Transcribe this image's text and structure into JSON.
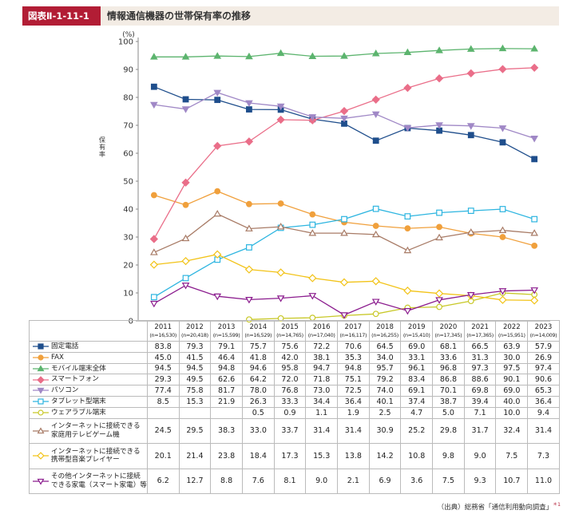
{
  "figure": {
    "tag": "図表Ⅱ-1-11-1",
    "title": "情報通信機器の世帯保有率の推移",
    "source": "（出典）総務省「通信利用動向調査」",
    "source_ref": "＊1"
  },
  "chart_data": {
    "type": "line",
    "title": "情報通信機器の世帯保有率の推移",
    "ylabel": "保有率",
    "yunit": "(%)",
    "ylim": [
      0,
      100
    ],
    "yticks": [
      0,
      10,
      20,
      30,
      40,
      50,
      60,
      70,
      80,
      90,
      100
    ],
    "grid": false,
    "legend": "table-left",
    "x": [
      "2011",
      "2012",
      "2013",
      "2014",
      "2015",
      "2016",
      "2017",
      "2018",
      "2019",
      "2020",
      "2021",
      "2022",
      "2023"
    ],
    "sample_sizes": [
      "(n=16,530)",
      "(n=20,418)",
      "(n=15,599)",
      "(n=16,529)",
      "(n=14,765)",
      "(n=17,040)",
      "(n=16,117)",
      "(n=16,255)",
      "(n=15,410)",
      "(n=17,345)",
      "(n=17,365)",
      "(n=15,951)",
      "(n=14,009)"
    ],
    "series": [
      {
        "name": "固定電話",
        "lines": [
          "固定電話"
        ],
        "color": "#1f4e8c",
        "marker": "square",
        "values": [
          83.8,
          79.3,
          79.1,
          75.7,
          75.6,
          72.2,
          70.6,
          64.5,
          69.0,
          68.1,
          66.5,
          63.9,
          57.9
        ]
      },
      {
        "name": "FAX",
        "lines": [
          "FAX"
        ],
        "color": "#f0a03c",
        "marker": "circle",
        "values": [
          45.0,
          41.5,
          46.4,
          41.8,
          42.0,
          38.1,
          35.3,
          34.0,
          33.1,
          33.6,
          31.3,
          30.0,
          26.9
        ]
      },
      {
        "name": "モバイル端末全体",
        "lines": [
          "モバイル端末全体"
        ],
        "color": "#5cb46e",
        "marker": "triangle",
        "values": [
          94.5,
          94.5,
          94.8,
          94.6,
          95.8,
          94.7,
          94.8,
          95.7,
          96.1,
          96.8,
          97.3,
          97.5,
          97.4
        ]
      },
      {
        "name": "スマートフォン",
        "lines": [
          "スマートフォン"
        ],
        "color": "#ea6e89",
        "marker": "diamond",
        "values": [
          29.3,
          49.5,
          62.6,
          64.2,
          72.0,
          71.8,
          75.1,
          79.2,
          83.4,
          86.8,
          88.6,
          90.1,
          90.6
        ]
      },
      {
        "name": "パソコン",
        "lines": [
          "パソコン"
        ],
        "color": "#a088c6",
        "marker": "triangle-down",
        "values": [
          77.4,
          75.8,
          81.7,
          78.0,
          76.8,
          73.0,
          72.5,
          74.0,
          69.1,
          70.1,
          69.8,
          69.0,
          65.3
        ]
      },
      {
        "name": "タブレット型端末",
        "lines": [
          "タブレット型端末"
        ],
        "color": "#2db5e0",
        "marker": "square-open",
        "values": [
          8.5,
          15.3,
          21.9,
          26.3,
          33.3,
          34.4,
          36.4,
          40.1,
          37.4,
          38.7,
          39.4,
          40.0,
          36.4
        ]
      },
      {
        "name": "ウェアラブル端末",
        "lines": [
          "ウェアラブル端末"
        ],
        "color": "#c8c828",
        "marker": "circle-open",
        "values": [
          null,
          null,
          null,
          0.5,
          0.9,
          1.1,
          1.9,
          2.5,
          4.7,
          5.0,
          7.1,
          10.0,
          9.4
        ]
      },
      {
        "name": "インターネットに接続できる家庭用テレビゲーム機",
        "lines": [
          "インターネットに接続できる",
          "家庭用テレビゲーム機"
        ],
        "color": "#a87b66",
        "marker": "triangle-open",
        "values": [
          24.5,
          29.5,
          38.3,
          33.0,
          33.7,
          31.4,
          31.4,
          30.9,
          25.2,
          29.8,
          31.7,
          32.4,
          31.4
        ]
      },
      {
        "name": "インターネットに接続できる携帯型音楽プレイヤー",
        "lines": [
          "インターネットに接続できる",
          "携帯型音楽プレイヤー"
        ],
        "color": "#f2c318",
        "marker": "diamond-open",
        "values": [
          20.1,
          21.4,
          23.8,
          18.4,
          17.3,
          15.3,
          13.8,
          14.2,
          10.8,
          9.8,
          9.0,
          7.5,
          7.3
        ]
      },
      {
        "name": "その他インターネットに接続できる家電（スマート家電）等",
        "lines": [
          "その他インターネットに接続",
          "できる家電（スマート家電）等"
        ],
        "color": "#8b1c8e",
        "marker": "triangle-down-open",
        "values": [
          6.2,
          12.7,
          8.8,
          7.6,
          8.1,
          9.0,
          2.1,
          6.9,
          3.6,
          7.5,
          9.3,
          10.7,
          11.0
        ]
      }
    ]
  }
}
